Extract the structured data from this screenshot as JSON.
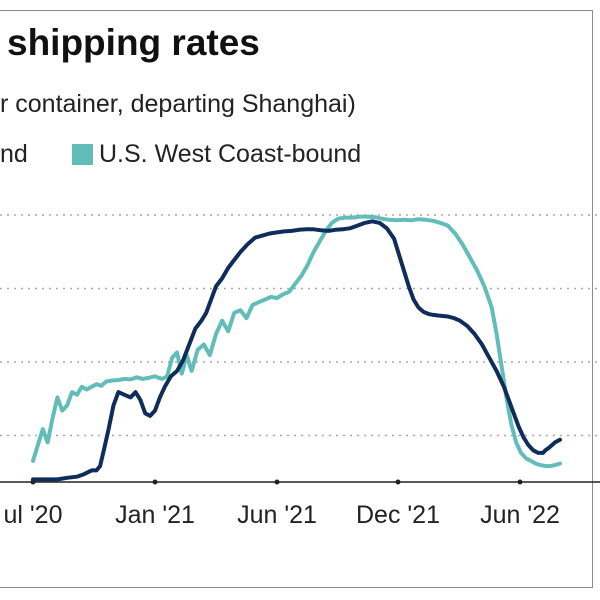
{
  "chart_data": {
    "type": "line",
    "title": "shipping rates",
    "subtitle": "r container, departing Shanghai)",
    "x_tick_labels": [
      "ul '20",
      "Jan '21",
      "Jun '21",
      "Dec '21",
      "Jun '22"
    ],
    "grid": "horizontal dotted",
    "legend_placement": "top-left",
    "series": [
      {
        "name": "nd",
        "color": "#0e2d5a",
        "x": [
          0.0,
          0.1,
          0.2,
          0.28,
          0.36,
          0.42,
          0.48,
          0.52,
          0.55,
          0.58,
          0.62,
          0.66,
          0.7,
          0.75,
          0.8,
          0.84,
          0.88,
          0.92,
          0.96,
          1.0,
          1.04,
          1.08,
          1.13,
          1.18,
          1.23,
          1.28,
          1.33,
          1.38,
          1.42,
          1.46,
          1.5,
          1.55,
          1.6,
          1.65,
          1.7,
          1.76,
          1.82,
          1.88,
          1.94,
          2.0,
          2.06,
          2.12,
          2.18,
          2.24,
          2.3,
          2.36,
          2.42,
          2.48,
          2.54,
          2.6,
          2.66,
          2.72,
          2.78,
          2.84,
          2.9,
          2.96,
          3.0,
          3.04,
          3.08,
          3.12,
          3.16,
          3.2,
          3.24,
          3.28,
          3.32,
          3.36,
          3.4,
          3.45,
          3.5,
          3.56,
          3.62,
          3.68,
          3.74,
          3.8,
          3.86,
          3.9,
          3.94,
          3.98,
          4.02,
          4.06,
          4.1,
          4.14,
          4.18,
          4.2,
          4.23,
          4.28,
          4.32
        ],
        "y": [
          0.05,
          0.05,
          0.05,
          0.08,
          0.1,
          0.15,
          0.22,
          0.22,
          0.3,
          0.6,
          1.0,
          1.45,
          1.7,
          1.65,
          1.6,
          1.7,
          1.55,
          1.3,
          1.25,
          1.35,
          1.6,
          1.8,
          2.0,
          2.1,
          2.3,
          2.6,
          2.9,
          3.05,
          3.2,
          3.45,
          3.7,
          3.85,
          4.05,
          4.2,
          4.35,
          4.5,
          4.62,
          4.66,
          4.7,
          4.72,
          4.74,
          4.75,
          4.77,
          4.78,
          4.78,
          4.76,
          4.75,
          4.77,
          4.78,
          4.8,
          4.85,
          4.9,
          4.93,
          4.9,
          4.8,
          4.6,
          4.3,
          4.0,
          3.7,
          3.45,
          3.3,
          3.22,
          3.18,
          3.16,
          3.15,
          3.14,
          3.13,
          3.1,
          3.05,
          2.95,
          2.8,
          2.6,
          2.35,
          2.1,
          1.8,
          1.55,
          1.3,
          1.05,
          0.85,
          0.7,
          0.6,
          0.55,
          0.55,
          0.6,
          0.65,
          0.75,
          0.8
        ]
      },
      {
        "name": "U.S. West Coast-bound",
        "color": "#62bdb8",
        "x": [
          0.0,
          0.04,
          0.08,
          0.12,
          0.16,
          0.2,
          0.24,
          0.28,
          0.32,
          0.36,
          0.4,
          0.44,
          0.48,
          0.52,
          0.56,
          0.6,
          0.65,
          0.7,
          0.75,
          0.8,
          0.85,
          0.9,
          0.95,
          1.0,
          1.03,
          1.06,
          1.1,
          1.14,
          1.18,
          1.22,
          1.26,
          1.3,
          1.35,
          1.4,
          1.45,
          1.5,
          1.55,
          1.6,
          1.65,
          1.7,
          1.75,
          1.8,
          1.85,
          1.9,
          1.95,
          2.0,
          2.05,
          2.1,
          2.15,
          2.2,
          2.25,
          2.3,
          2.35,
          2.4,
          2.45,
          2.5,
          2.56,
          2.62,
          2.68,
          2.74,
          2.8,
          2.86,
          2.92,
          2.98,
          3.04,
          3.1,
          3.16,
          3.22,
          3.28,
          3.34,
          3.4,
          3.46,
          3.52,
          3.58,
          3.64,
          3.7,
          3.76,
          3.8,
          3.84,
          3.88,
          3.92,
          3.96,
          4.0,
          4.04,
          4.08,
          4.12,
          4.16,
          4.2,
          4.24,
          4.28,
          4.32
        ],
        "y": [
          0.4,
          0.7,
          1.0,
          0.75,
          1.2,
          1.6,
          1.35,
          1.45,
          1.7,
          1.65,
          1.8,
          1.75,
          1.8,
          1.85,
          1.82,
          1.9,
          1.92,
          1.93,
          1.95,
          1.94,
          1.98,
          1.95,
          1.97,
          2.0,
          1.97,
          1.95,
          2.0,
          2.35,
          2.45,
          2.05,
          2.4,
          2.1,
          2.5,
          2.6,
          2.4,
          2.8,
          3.05,
          2.85,
          3.2,
          3.25,
          3.1,
          3.35,
          3.4,
          3.45,
          3.5,
          3.48,
          3.55,
          3.6,
          3.75,
          3.9,
          4.1,
          4.35,
          4.55,
          4.75,
          4.9,
          4.98,
          5.0,
          5.0,
          5.02,
          5.02,
          5.01,
          4.98,
          4.96,
          4.95,
          4.96,
          4.95,
          4.97,
          4.96,
          4.94,
          4.9,
          4.85,
          4.7,
          4.5,
          4.25,
          4.0,
          3.7,
          3.3,
          2.8,
          2.2,
          1.6,
          1.1,
          0.75,
          0.55,
          0.45,
          0.4,
          0.35,
          0.32,
          0.3,
          0.3,
          0.32,
          0.35
        ]
      }
    ]
  }
}
